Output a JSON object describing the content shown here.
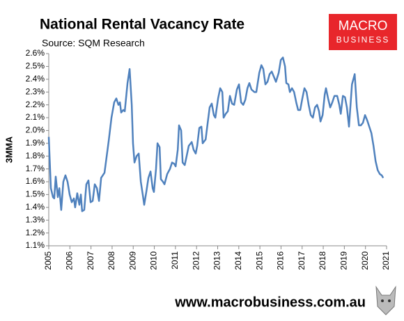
{
  "chart_data": {
    "type": "line",
    "title": "National Rental Vacancy Rate",
    "subtitle": "Source: SQM Research",
    "ylabel": "3MMA",
    "color": "#4f81bd",
    "x": [
      2005.0,
      2005.1,
      2005.2,
      2005.26,
      2005.33,
      2005.43,
      2005.5,
      2005.59,
      2005.69,
      2005.79,
      2005.89,
      2005.99,
      2006.09,
      2006.19,
      2006.25,
      2006.35,
      2006.45,
      2006.52,
      2006.58,
      2006.68,
      2006.78,
      2006.88,
      2006.98,
      2007.08,
      2007.18,
      2007.28,
      2007.38,
      2007.48,
      2007.64,
      2007.84,
      2007.97,
      2008.1,
      2008.2,
      2008.3,
      2008.37,
      2008.43,
      2008.53,
      2008.6,
      2008.73,
      2008.83,
      2008.93,
      2008.99,
      2009.06,
      2009.16,
      2009.26,
      2009.36,
      2009.46,
      2009.52,
      2009.62,
      2009.72,
      2009.82,
      2009.92,
      2009.98,
      2010.08,
      2010.15,
      2010.25,
      2010.31,
      2010.41,
      2010.48,
      2010.61,
      2010.74,
      2010.84,
      2010.94,
      2011.01,
      2011.11,
      2011.17,
      2011.27,
      2011.34,
      2011.44,
      2011.53,
      2011.63,
      2011.77,
      2011.86,
      2011.96,
      2012.03,
      2012.13,
      2012.23,
      2012.29,
      2012.43,
      2012.52,
      2012.62,
      2012.72,
      2012.82,
      2012.89,
      2013.02,
      2013.12,
      2013.22,
      2013.28,
      2013.38,
      2013.48,
      2013.58,
      2013.68,
      2013.78,
      2013.91,
      2014.01,
      2014.11,
      2014.21,
      2014.31,
      2014.41,
      2014.5,
      2014.6,
      2014.74,
      2014.83,
      2014.97,
      2015.07,
      2015.16,
      2015.26,
      2015.36,
      2015.46,
      2015.56,
      2015.66,
      2015.76,
      2015.89,
      2015.99,
      2016.09,
      2016.19,
      2016.25,
      2016.35,
      2016.42,
      2016.52,
      2016.62,
      2016.72,
      2016.81,
      2016.91,
      2017.01,
      2017.11,
      2017.21,
      2017.31,
      2017.41,
      2017.51,
      2017.61,
      2017.71,
      2017.8,
      2017.87,
      2017.97,
      2018.07,
      2018.13,
      2018.23,
      2018.33,
      2018.43,
      2018.53,
      2018.66,
      2018.76,
      2018.83,
      2018.93,
      2019.03,
      2019.12,
      2019.22,
      2019.36,
      2019.49,
      2019.59,
      2019.69,
      2019.78,
      2019.88,
      2019.98,
      2020.08,
      2020.18,
      2020.28,
      2020.38,
      2020.48,
      2020.58,
      2020.68,
      2020.77,
      2020.84
    ],
    "values": [
      1.95,
      1.55,
      1.48,
      1.47,
      1.64,
      1.48,
      1.55,
      1.38,
      1.6,
      1.65,
      1.6,
      1.5,
      1.44,
      1.47,
      1.4,
      1.51,
      1.42,
      1.5,
      1.37,
      1.38,
      1.58,
      1.61,
      1.44,
      1.45,
      1.58,
      1.55,
      1.45,
      1.63,
      1.67,
      1.92,
      2.1,
      2.22,
      2.25,
      2.2,
      2.22,
      2.14,
      2.16,
      2.15,
      2.37,
      2.48,
      2.2,
      1.9,
      1.75,
      1.8,
      1.82,
      1.6,
      1.49,
      1.42,
      1.52,
      1.63,
      1.68,
      1.55,
      1.52,
      1.7,
      1.9,
      1.87,
      1.62,
      1.6,
      1.58,
      1.66,
      1.7,
      1.75,
      1.74,
      1.72,
      1.85,
      2.04,
      2.0,
      1.75,
      1.73,
      1.8,
      1.88,
      1.91,
      1.85,
      1.82,
      1.88,
      2.02,
      2.03,
      1.9,
      1.93,
      2.05,
      2.18,
      2.21,
      2.12,
      2.1,
      2.25,
      2.33,
      2.3,
      2.1,
      2.13,
      2.15,
      2.27,
      2.21,
      2.2,
      2.32,
      2.36,
      2.22,
      2.2,
      2.24,
      2.33,
      2.37,
      2.32,
      2.3,
      2.3,
      2.45,
      2.51,
      2.48,
      2.36,
      2.38,
      2.44,
      2.46,
      2.42,
      2.38,
      2.45,
      2.55,
      2.57,
      2.5,
      2.37,
      2.36,
      2.3,
      2.33,
      2.3,
      2.22,
      2.16,
      2.16,
      2.25,
      2.33,
      2.3,
      2.2,
      2.12,
      2.1,
      2.18,
      2.2,
      2.15,
      2.07,
      2.12,
      2.28,
      2.33,
      2.25,
      2.18,
      2.22,
      2.27,
      2.27,
      2.2,
      2.13,
      2.27,
      2.26,
      2.18,
      2.03,
      2.36,
      2.44,
      2.18,
      2.04,
      2.04,
      2.06,
      2.12,
      2.08,
      2.03,
      1.98,
      1.88,
      1.76,
      1.69,
      1.66,
      1.65,
      1.63
    ],
    "xlim": [
      2005,
      2021
    ],
    "xticks": [
      2005,
      2006,
      2007,
      2008,
      2009,
      2010,
      2011,
      2012,
      2013,
      2014,
      2015,
      2016,
      2017,
      2018,
      2019,
      2020,
      2021
    ],
    "ylim": [
      1.1,
      2.6
    ],
    "yticks": [
      {
        "value": 1.1,
        "label": "1.1%"
      },
      {
        "value": 1.2,
        "label": "1.2%"
      },
      {
        "value": 1.3,
        "label": "1.3%"
      },
      {
        "value": 1.4,
        "label": "1.4%"
      },
      {
        "value": 1.5,
        "label": "1.5%"
      },
      {
        "value": 1.6,
        "label": "1.6%"
      },
      {
        "value": 1.7,
        "label": "1.7%"
      },
      {
        "value": 1.8,
        "label": "1.8%"
      },
      {
        "value": 1.9,
        "label": "1.9%"
      },
      {
        "value": 2.0,
        "label": "2.0%"
      },
      {
        "value": 2.1,
        "label": "2.1%"
      },
      {
        "value": 2.2,
        "label": "2.2%"
      },
      {
        "value": 2.3,
        "label": "2.3%"
      },
      {
        "value": 2.4,
        "label": "2.4%"
      },
      {
        "value": 2.5,
        "label": "2.5%"
      },
      {
        "value": 2.6,
        "label": "2.6%"
      }
    ],
    "grid": false
  },
  "logo": {
    "line1": "MACRO",
    "line2": "BUSINESS"
  },
  "footer": "www.macrobusiness.com.au"
}
